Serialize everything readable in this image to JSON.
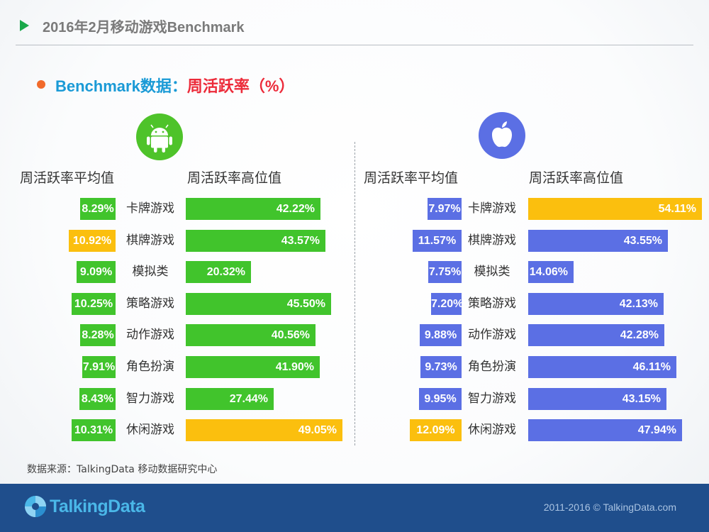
{
  "header": {
    "title": "2016年2月移动游戏Benchmark"
  },
  "section": {
    "title_part1": "Benchmark数据：",
    "title_part2": "周活跃率（%）"
  },
  "colors": {
    "green": "#41c42c",
    "blue": "#5b6fe4",
    "highlight": "#fbbf0e",
    "android_circle": "#4ec32a",
    "apple_circle": "#5b6fe4"
  },
  "icons": {
    "android": "android-icon",
    "apple": "apple-icon",
    "header_arrow": "play-triangle-icon",
    "logo": "talkingdata-logo-icon"
  },
  "chart_data": [
    {
      "type": "bar",
      "platform": "Android",
      "col_headers": {
        "avg": "周活跃率平均值",
        "high": "周活跃率高位值"
      },
      "categories": [
        "卡牌游戏",
        "棋牌游戏",
        "模拟类",
        "策略游戏",
        "动作游戏",
        "角色扮演",
        "智力游戏",
        "休闲游戏"
      ],
      "series": [
        {
          "name": "周活跃率平均值",
          "values": [
            8.29,
            10.92,
            9.09,
            10.25,
            8.28,
            7.91,
            8.43,
            10.31
          ],
          "labels": [
            "8.29%",
            "10.92%",
            "9.09%",
            "10.25%",
            "8.28%",
            "7.91%",
            "8.43%",
            "10.31%"
          ],
          "highlight_index": 1
        },
        {
          "name": "周活跃率高位值",
          "values": [
            42.22,
            43.57,
            20.32,
            45.5,
            40.56,
            41.9,
            27.44,
            49.05
          ],
          "labels": [
            "42.22%",
            "43.57%",
            "20.32%",
            "45.50%",
            "40.56%",
            "41.90%",
            "27.44%",
            "49.05%"
          ],
          "highlight_index": 7
        }
      ]
    },
    {
      "type": "bar",
      "platform": "iOS",
      "col_headers": {
        "avg": "周活跃率平均值",
        "high": "周活跃率高位值"
      },
      "categories": [
        "卡牌游戏",
        "棋牌游戏",
        "模拟类",
        "策略游戏",
        "动作游戏",
        "角色扮演",
        "智力游戏",
        "休闲游戏"
      ],
      "series": [
        {
          "name": "周活跃率平均值",
          "values": [
            7.97,
            11.57,
            7.75,
            7.2,
            9.88,
            9.73,
            9.95,
            12.09
          ],
          "labels": [
            "7.97%",
            "11.57%",
            "7.75%",
            "7.20%",
            "9.88%",
            "9.73%",
            "9.95%",
            "12.09%"
          ],
          "highlight_index": 7
        },
        {
          "name": "周活跃率高位值",
          "values": [
            54.11,
            43.55,
            14.06,
            42.13,
            42.28,
            46.11,
            43.15,
            47.94
          ],
          "labels": [
            "54.11%",
            "43.55%",
            "14.06%",
            "42.13%",
            "42.28%",
            "46.11%",
            "43.15%",
            "47.94%"
          ],
          "highlight_index": 0
        }
      ]
    }
  ],
  "footer": {
    "source": "数据来源：TalkingData 移动数据研究中心",
    "logo_text": "TalkingData",
    "copyright": "2011-2016 © TalkingData.com"
  }
}
